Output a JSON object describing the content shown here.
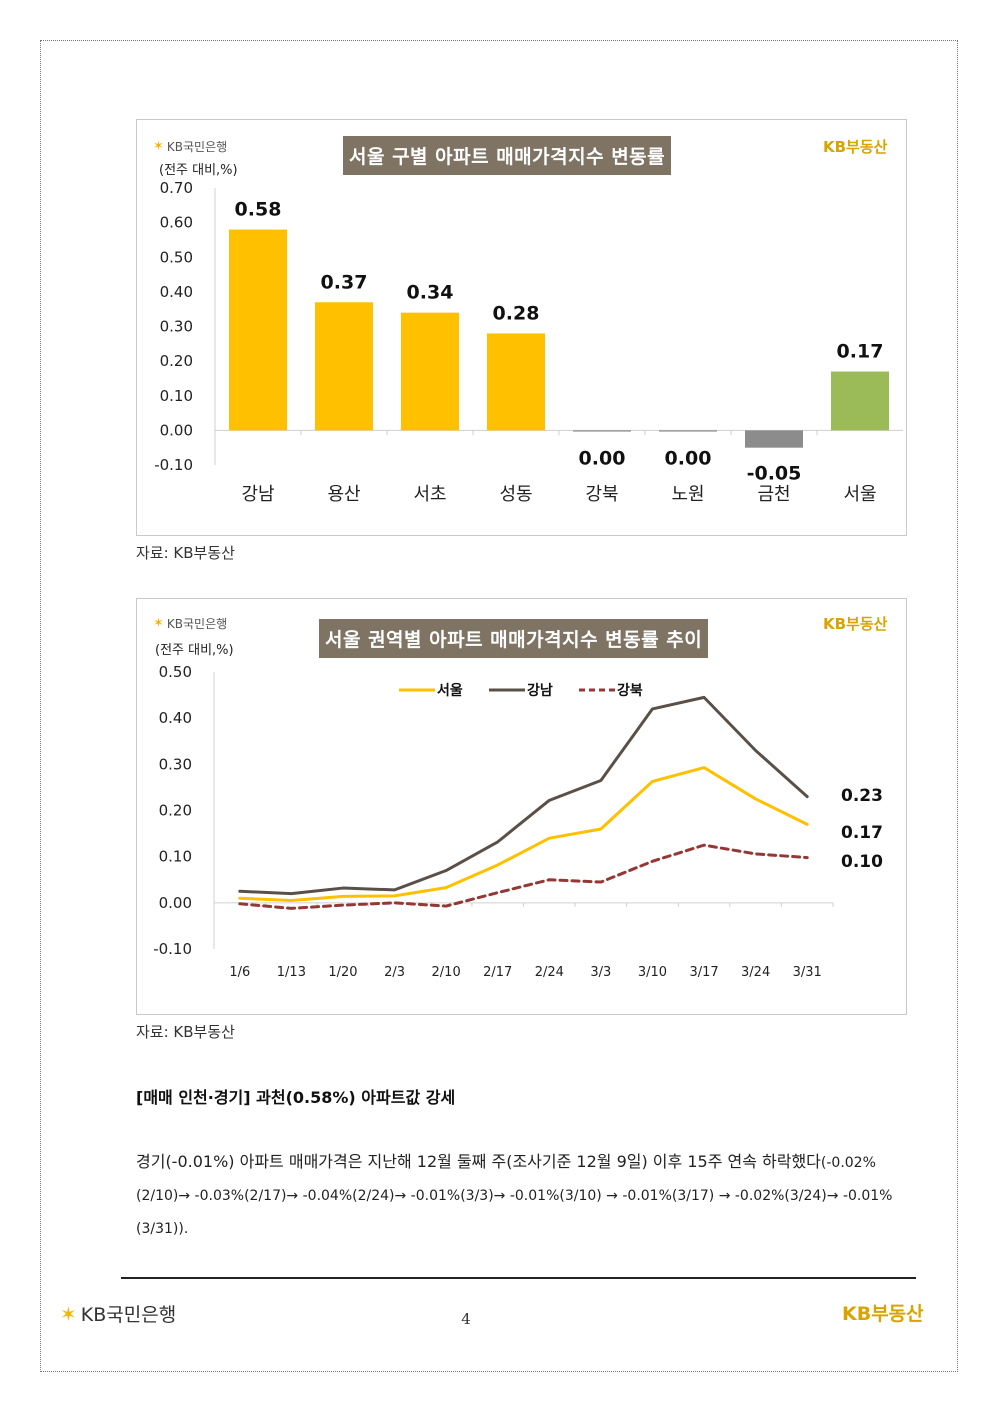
{
  "brand": {
    "bank": "KB국민은행",
    "realestate": "KB부동산"
  },
  "chart_data": [
    {
      "type": "bar",
      "title": "서울 구별 아파트 매매가격지수 변동률",
      "unit_label": "(전주 대비,%)",
      "categories": [
        "강남",
        "용산",
        "서초",
        "성동",
        "강북",
        "노원",
        "금천",
        "서울"
      ],
      "values": [
        0.58,
        0.37,
        0.34,
        0.28,
        0.0,
        0.0,
        -0.05,
        0.17
      ],
      "value_labels": [
        "0.58",
        "0.37",
        "0.34",
        "0.28",
        "0.00",
        "0.00",
        "-0.05",
        "0.17"
      ],
      "bar_colors": [
        "#ffc000",
        "#ffc000",
        "#ffc000",
        "#ffc000",
        "#8c8c8c",
        "#8c8c8c",
        "#8c8c8c",
        "#9bbb59"
      ],
      "ylim": [
        -0.1,
        0.7
      ],
      "yticks": [
        "0.70",
        "0.60",
        "0.50",
        "0.40",
        "0.30",
        "0.20",
        "0.10",
        "0.00",
        "-0.10"
      ],
      "source": "자료: KB부동산"
    },
    {
      "type": "line",
      "title": "서울 권역별 아파트 매매가격지수 변동률 추이",
      "unit_label": "(전주 대비,%)",
      "x": [
        "1/6",
        "1/13",
        "1/20",
        "2/3",
        "2/10",
        "2/17",
        "2/24",
        "3/3",
        "3/10",
        "3/17",
        "3/24",
        "3/31"
      ],
      "series": [
        {
          "name": "서울",
          "color": "#ffc000",
          "dash": "solid",
          "values": [
            0.01,
            0.005,
            0.014,
            0.015,
            0.033,
            0.082,
            0.14,
            0.16,
            0.263,
            0.293,
            0.225,
            0.17
          ]
        },
        {
          "name": "강남",
          "color": "#5a5048",
          "dash": "solid",
          "values": [
            0.025,
            0.02,
            0.032,
            0.028,
            0.07,
            0.132,
            0.222,
            0.265,
            0.42,
            0.445,
            0.33,
            0.23
          ]
        },
        {
          "name": "강북",
          "color": "#953735",
          "dash": "dashed",
          "values": [
            -0.002,
            -0.012,
            -0.005,
            0.0,
            -0.007,
            0.022,
            0.05,
            0.045,
            0.09,
            0.125,
            0.106,
            0.098
          ]
        }
      ],
      "end_labels": [
        "0.23",
        "0.17",
        "0.10"
      ],
      "ylim": [
        -0.1,
        0.5
      ],
      "yticks": [
        "0.50",
        "0.40",
        "0.30",
        "0.20",
        "0.10",
        "0.00",
        "-0.10"
      ],
      "source": "자료: KB부동산"
    }
  ],
  "section": {
    "heading": "[매매 인천·경기] 과천(0.58%) 아파트값 강세",
    "paragraph_main": "경기(-0.01%) 아파트 매매가격은 지난해 12월 둘째 주(조사기준 12월 9일) 이후 15주 연속 하락했다",
    "paragraph_detail": "(-0.02%(2/10)→ -0.03%(2/17)→ -0.04%(2/24)→ -0.01%(3/3)→ -0.01%(3/10) → -0.01%(3/17) → -0.02%(3/24)→ -0.01%(3/31))."
  },
  "footer": {
    "page_number": "4"
  }
}
